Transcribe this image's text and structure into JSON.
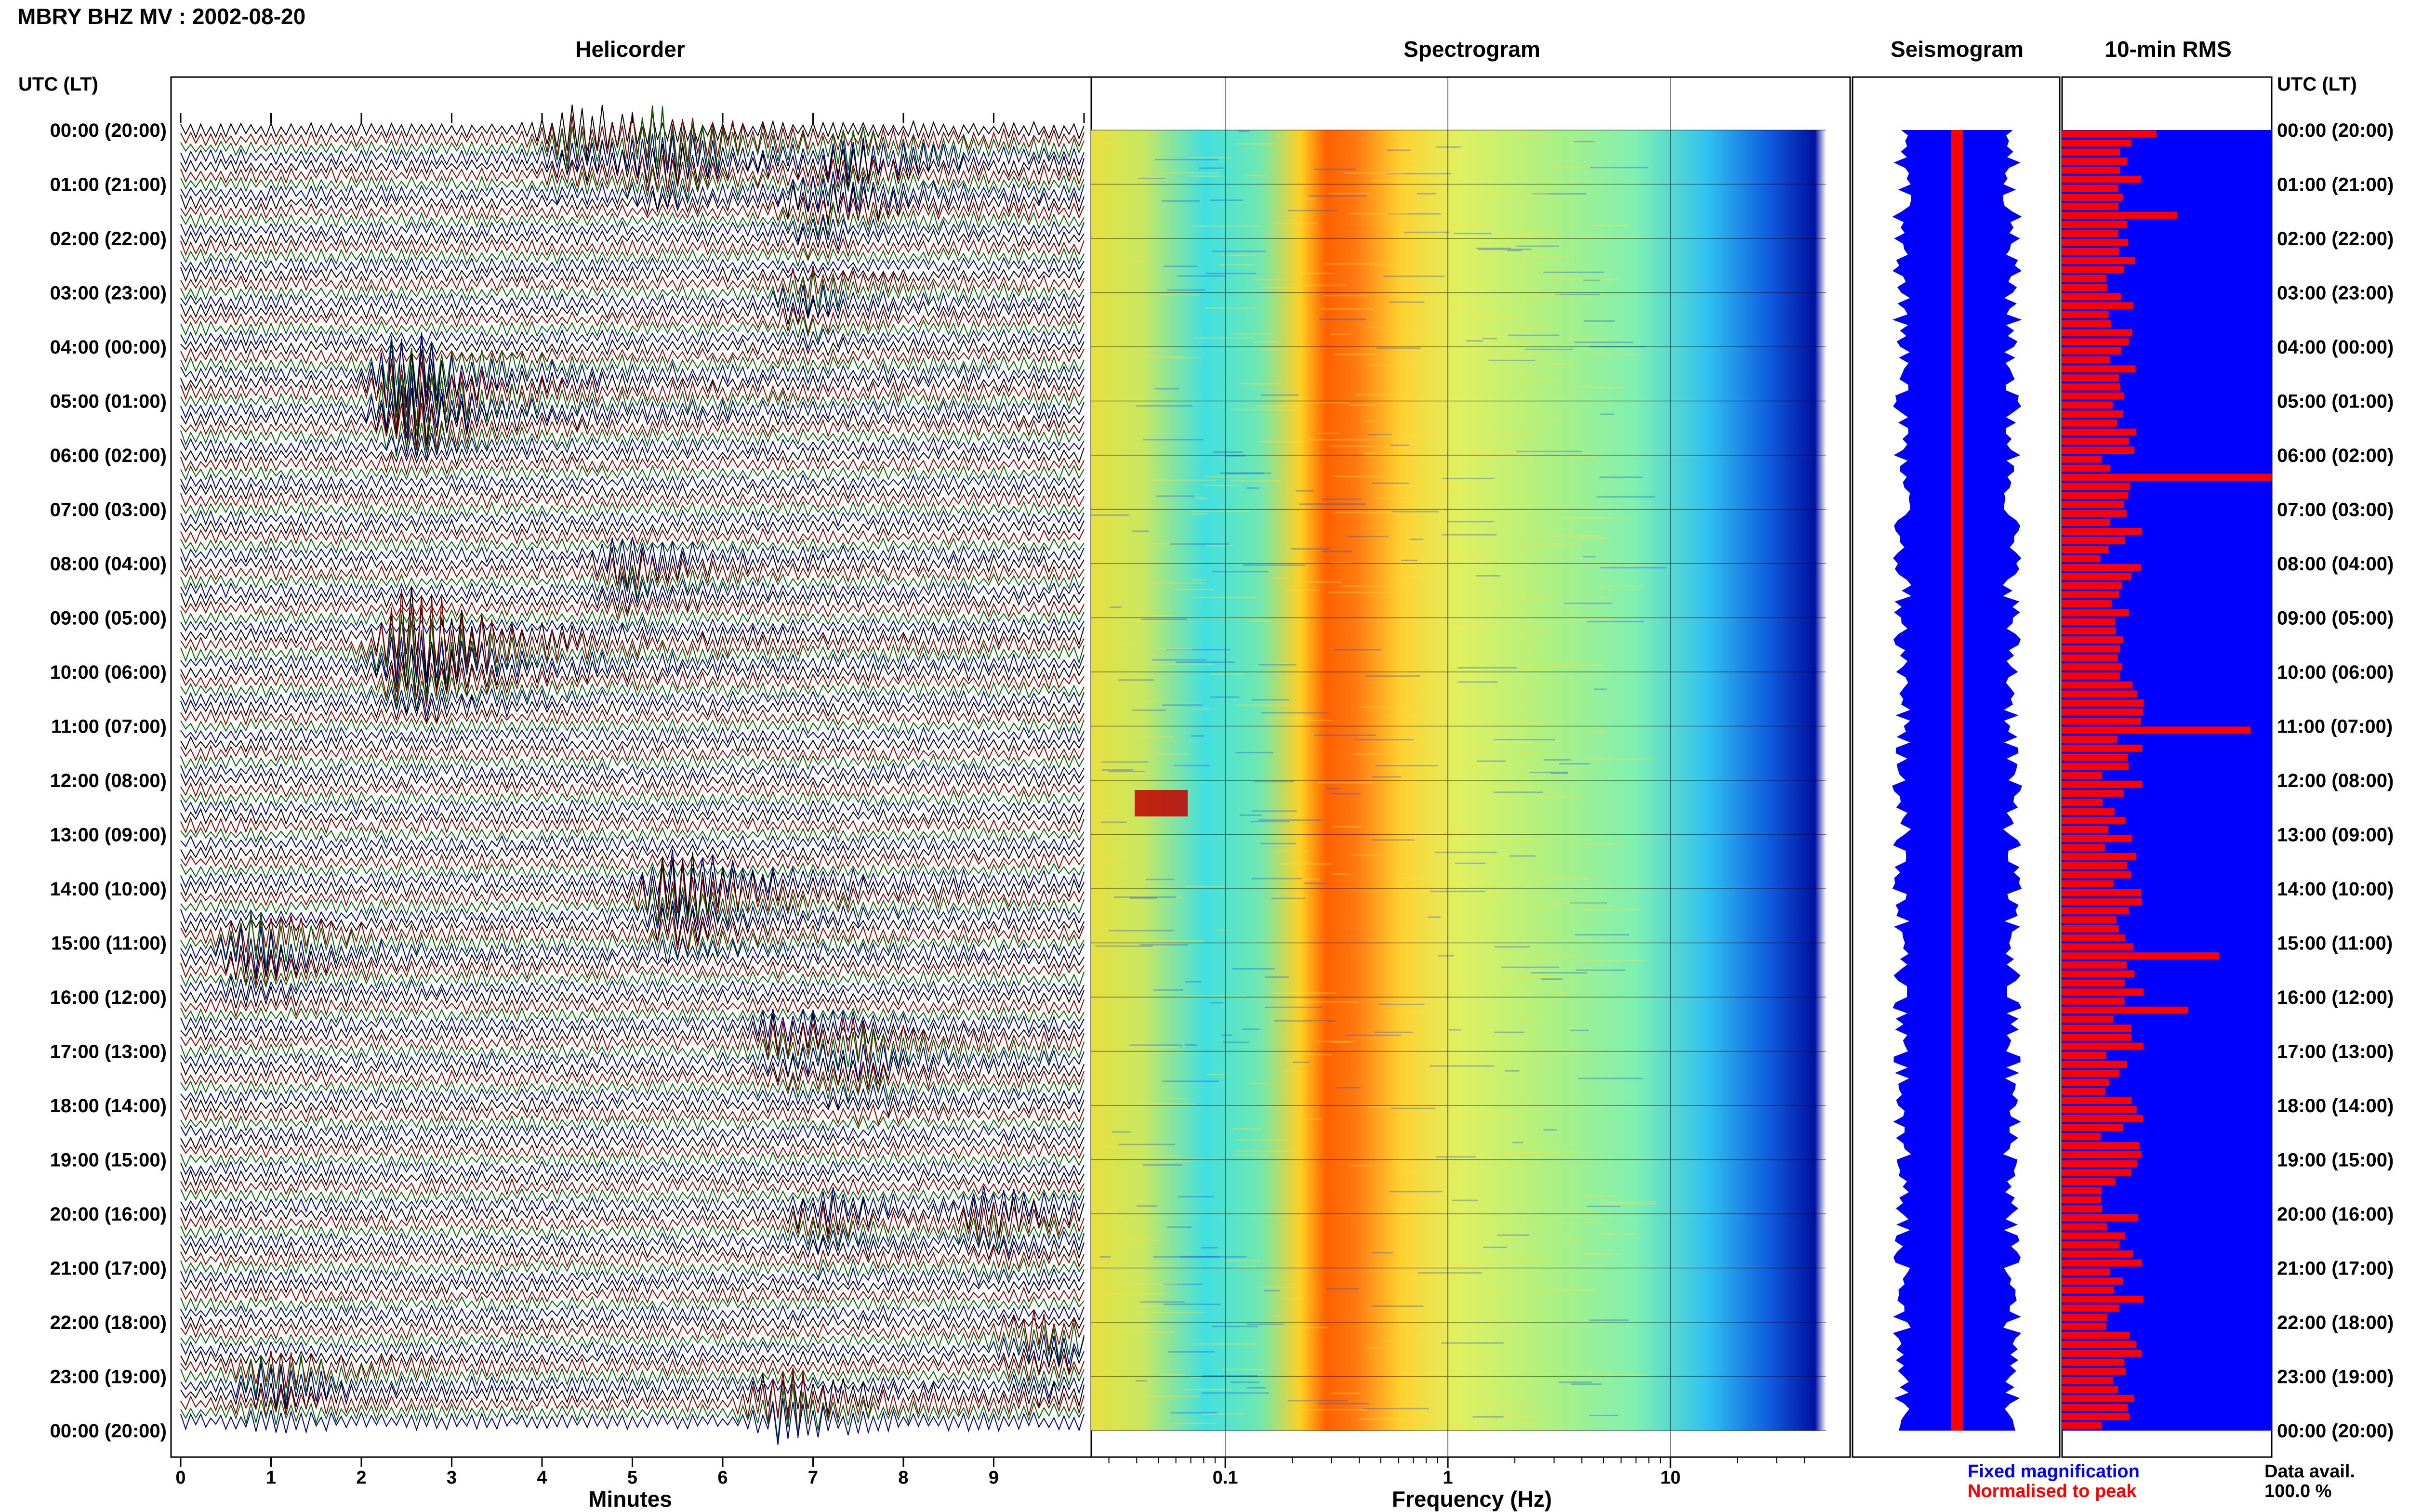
{
  "station_title": "MBRY BHZ MV : 2002-08-20",
  "panels": {
    "helicorder": "Helicorder",
    "spectrogram": "Spectrogram",
    "seismogram": "Seismogram",
    "rms": "10-min RMS"
  },
  "time_axis_label_left": "UTC (LT)",
  "time_axis_label_right": "UTC (LT)",
  "time_labels": [
    "00:00 (20:00)",
    "01:00 (21:00)",
    "02:00 (22:00)",
    "03:00 (23:00)",
    "04:00 (00:00)",
    "05:00 (01:00)",
    "06:00 (02:00)",
    "07:00 (03:00)",
    "08:00 (04:00)",
    "09:00 (05:00)",
    "10:00 (06:00)",
    "11:00 (07:00)",
    "12:00 (08:00)",
    "13:00 (09:00)",
    "14:00 (10:00)",
    "15:00 (11:00)",
    "16:00 (12:00)",
    "17:00 (13:00)",
    "18:00 (14:00)",
    "19:00 (15:00)",
    "20:00 (16:00)",
    "21:00 (17:00)",
    "22:00 (18:00)",
    "23:00 (19:00)",
    "00:00 (20:00)"
  ],
  "helicorder_xlabel": "Minutes",
  "helicorder_ticks": [
    "0",
    "1",
    "2",
    "3",
    "4",
    "5",
    "6",
    "7",
    "8",
    "9"
  ],
  "spectrogram_xlabel": "Frequency (Hz)",
  "spectrogram_ticks": [
    "0.1",
    "1",
    "10"
  ],
  "legend": {
    "fixed": "Fixed magnification",
    "normalised": "Normalised to peak",
    "fixed_color": "#0000ff",
    "normalised_color": "#ff0000"
  },
  "data_avail_label": "Data avail.",
  "data_avail_value": "100.0 %",
  "colors": {
    "trace_cycle": [
      "#000000",
      "#8b0000",
      "#006400",
      "#00008b"
    ],
    "rms_fill": "#0000ff",
    "rms_bar": "#ff0000",
    "seismogram_envelope": "#0000ff",
    "seismogram_center": "#ff0000"
  },
  "chart_data": [
    {
      "type": "line",
      "title": "Helicorder",
      "xlabel": "Minutes",
      "ylabel": "UTC (LT)",
      "xlim": [
        0,
        10
      ],
      "rows_per_hour": 6,
      "hours": 24,
      "events": [
        {
          "hour": 0.0,
          "minute": 4.4,
          "amplitude": 3.5
        },
        {
          "hour": 0.3,
          "minute": 5.3,
          "amplitude": 4.5
        },
        {
          "hour": 0.5,
          "minute": 7.4,
          "amplitude": 2.5
        },
        {
          "hour": 1.3,
          "minute": 7.0,
          "amplitude": 2.0
        },
        {
          "hour": 3.0,
          "minute": 6.9,
          "amplitude": 2.0
        },
        {
          "hour": 4.5,
          "minute": 2.5,
          "amplitude": 5.5
        },
        {
          "hour": 5.0,
          "minute": 2.6,
          "amplitude": 3.5
        },
        {
          "hour": 8.0,
          "minute": 5.0,
          "amplitude": 2.5
        },
        {
          "hour": 9.5,
          "minute": 2.6,
          "amplitude": 8.0
        },
        {
          "hour": 14.0,
          "minute": 5.5,
          "amplitude": 5.5
        },
        {
          "hour": 15.0,
          "minute": 0.8,
          "amplitude": 3.5
        },
        {
          "hour": 16.7,
          "minute": 6.7,
          "amplitude": 2.5
        },
        {
          "hour": 17.0,
          "minute": 7.5,
          "amplitude": 2.5
        },
        {
          "hour": 20.0,
          "minute": 7.1,
          "amplitude": 2.0
        },
        {
          "hour": 20.0,
          "minute": 9.0,
          "amplitude": 2.0
        },
        {
          "hour": 22.3,
          "minute": 9.5,
          "amplitude": 2.5
        },
        {
          "hour": 23.0,
          "minute": 1.0,
          "amplitude": 3.0
        },
        {
          "hour": 23.5,
          "minute": 6.7,
          "amplitude": 4.0
        }
      ]
    },
    {
      "type": "heatmap",
      "title": "Spectrogram",
      "xlabel": "Frequency (Hz)",
      "ylabel": "UTC (LT)",
      "x_scale": "log",
      "xlim": [
        0.025,
        50
      ],
      "peak_band_hz": [
        0.25,
        0.6
      ],
      "rolloff_hz": 30,
      "colormap": "jet"
    },
    {
      "type": "line",
      "title": "Seismogram",
      "series": [
        {
          "name": "Fixed magnification"
        },
        {
          "name": "Normalised to peak"
        }
      ]
    },
    {
      "type": "bar",
      "title": "10-min RMS",
      "orientation": "horizontal",
      "bars_per_hour": 6,
      "hours": 24,
      "peaks": [
        {
          "hour": 0.0,
          "value": 0.45
        },
        {
          "hour": 1.5,
          "value": 0.55
        },
        {
          "hour": 6.3,
          "value": 1.0
        },
        {
          "hour": 11.0,
          "value": 0.9
        },
        {
          "hour": 15.2,
          "value": 0.75
        },
        {
          "hour": 16.2,
          "value": 0.6
        }
      ],
      "baseline_value": 0.3
    }
  ]
}
